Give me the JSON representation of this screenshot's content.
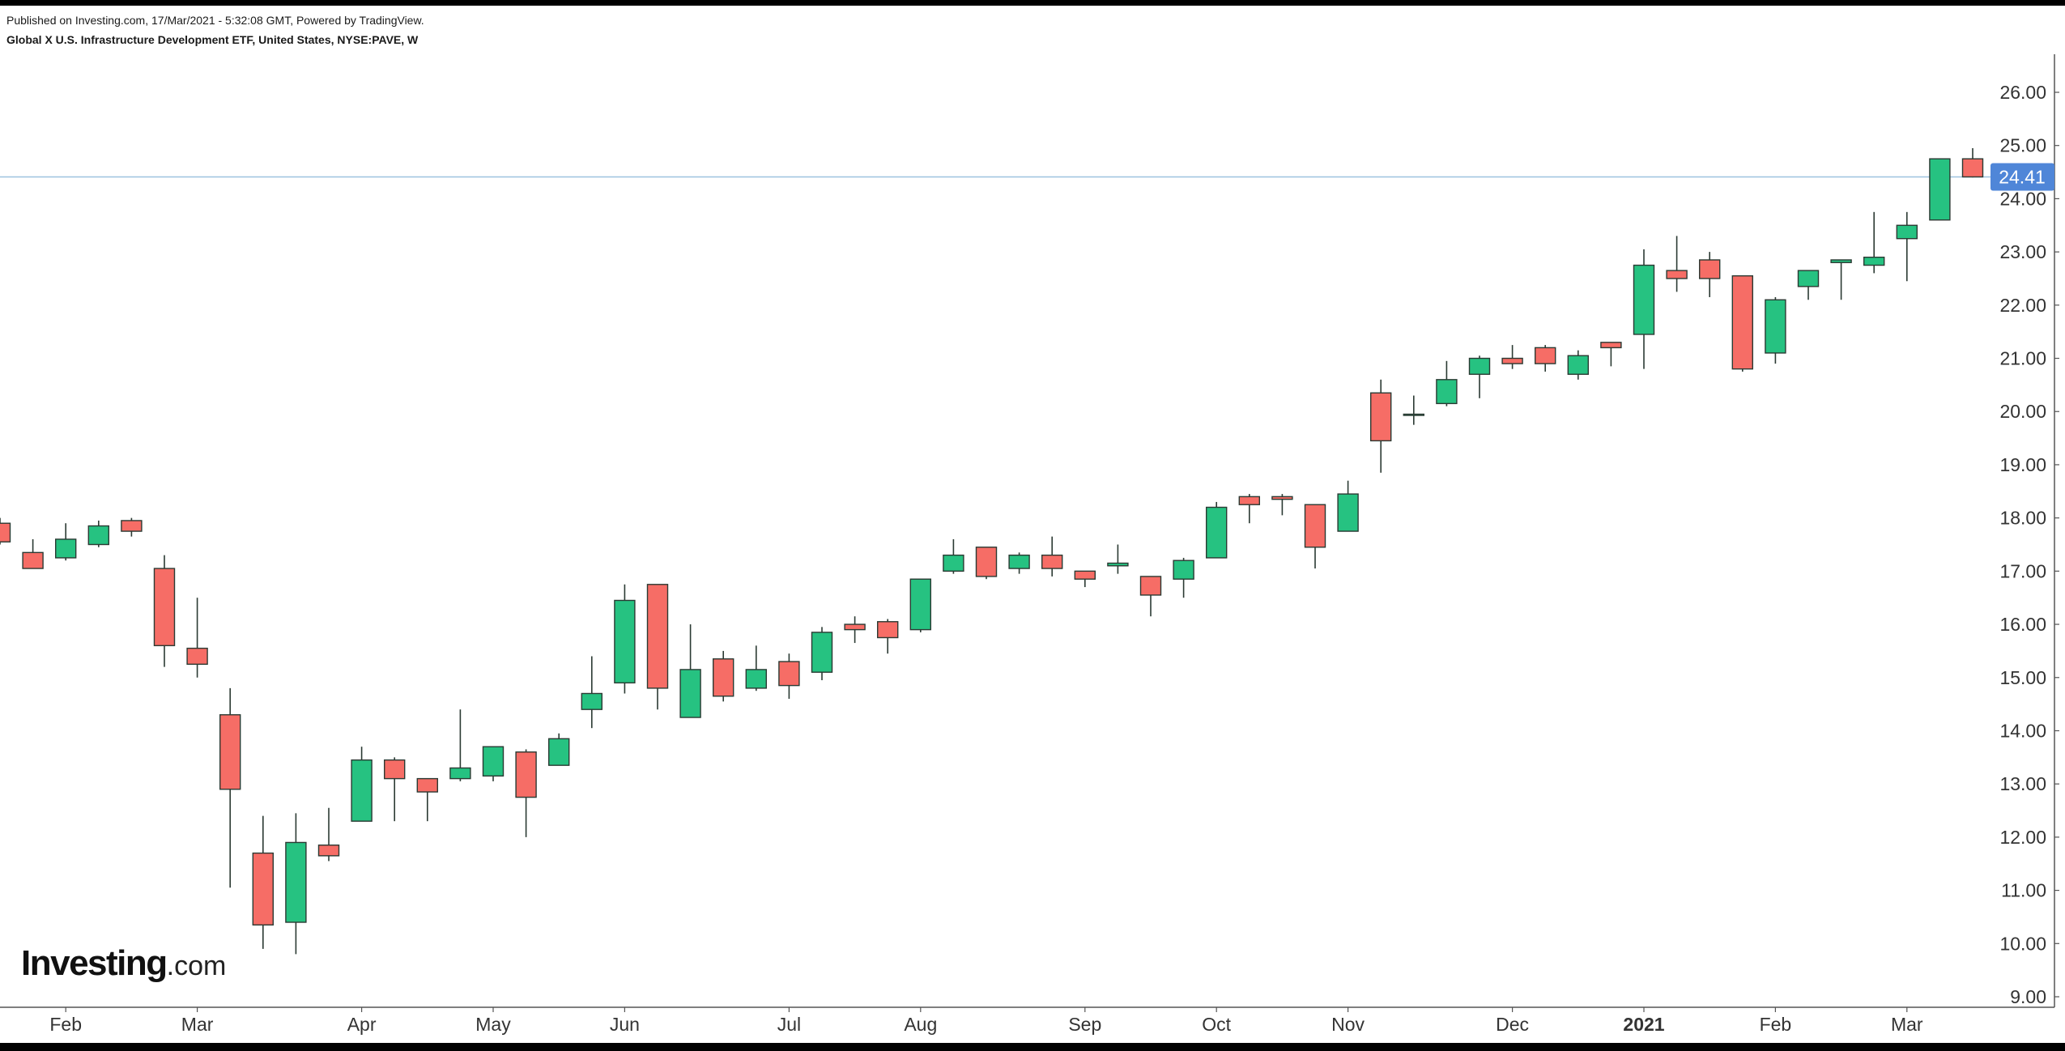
{
  "header": {
    "published": "Published on Investing.com, 17/Mar/2021 - 5:32:08 GMT, Powered by TradingView.",
    "symbol": "Global X U.S. Infrastructure Development ETF, United States, NYSE:PAVE, W"
  },
  "logo": {
    "main": "Investing",
    "tld": ".com"
  },
  "colors": {
    "up": "#26c281",
    "down": "#f66d66",
    "wick": "#2b3a33",
    "last_price_line": "#9ec3e0",
    "last_price_tag": "#4f86d8",
    "axis_text": "#333333"
  },
  "chart_data": {
    "type": "candlestick",
    "title": "",
    "xlabel": "",
    "ylabel": "",
    "ylim": [
      8.7,
      27.4
    ],
    "y_ticks": [
      "9.00",
      "10.00",
      "11.00",
      "12.00",
      "13.00",
      "14.00",
      "15.00",
      "16.00",
      "17.00",
      "18.00",
      "19.00",
      "20.00",
      "21.00",
      "22.00",
      "23.00",
      "24.00",
      "25.00",
      "26.00"
    ],
    "x_ticks": [
      {
        "label": "Feb",
        "index": 2
      },
      {
        "label": "Mar",
        "index": 6
      },
      {
        "label": "Apr",
        "index": 11
      },
      {
        "label": "May",
        "index": 15
      },
      {
        "label": "Jun",
        "index": 19
      },
      {
        "label": "Jul",
        "index": 24
      },
      {
        "label": "Aug",
        "index": 28
      },
      {
        "label": "Sep",
        "index": 33
      },
      {
        "label": "Oct",
        "index": 37
      },
      {
        "label": "Nov",
        "index": 41
      },
      {
        "label": "Dec",
        "index": 46
      },
      {
        "label": "2021",
        "index": 50,
        "bold": true
      },
      {
        "label": "Feb",
        "index": 54
      },
      {
        "label": "Mar",
        "index": 58
      }
    ],
    "last_price": 24.41,
    "last_price_label": "24.41",
    "grid": false,
    "candles": [
      {
        "o": 17.9,
        "h": 18.0,
        "l": 17.5,
        "c": 17.55
      },
      {
        "o": 17.35,
        "h": 17.6,
        "l": 17.05,
        "c": 17.05
      },
      {
        "o": 17.25,
        "h": 17.9,
        "l": 17.2,
        "c": 17.6
      },
      {
        "o": 17.5,
        "h": 17.95,
        "l": 17.45,
        "c": 17.85
      },
      {
        "o": 17.95,
        "h": 18.0,
        "l": 17.65,
        "c": 17.75
      },
      {
        "o": 17.05,
        "h": 17.3,
        "l": 15.2,
        "c": 15.6
      },
      {
        "o": 15.55,
        "h": 16.5,
        "l": 15.0,
        "c": 15.25
      },
      {
        "o": 14.3,
        "h": 14.8,
        "l": 11.05,
        "c": 12.9
      },
      {
        "o": 11.7,
        "h": 12.4,
        "l": 9.9,
        "c": 10.35
      },
      {
        "o": 10.4,
        "h": 12.45,
        "l": 9.8,
        "c": 11.9
      },
      {
        "o": 11.85,
        "h": 12.55,
        "l": 11.55,
        "c": 11.65
      },
      {
        "o": 12.3,
        "h": 13.7,
        "l": 12.3,
        "c": 13.45
      },
      {
        "o": 13.45,
        "h": 13.5,
        "l": 12.3,
        "c": 13.1
      },
      {
        "o": 13.1,
        "h": 13.1,
        "l": 12.3,
        "c": 12.85
      },
      {
        "o": 13.1,
        "h": 14.4,
        "l": 13.05,
        "c": 13.3
      },
      {
        "o": 13.15,
        "h": 13.7,
        "l": 13.05,
        "c": 13.7
      },
      {
        "o": 13.6,
        "h": 13.65,
        "l": 12.0,
        "c": 12.75
      },
      {
        "o": 13.35,
        "h": 13.95,
        "l": 13.35,
        "c": 13.85
      },
      {
        "o": 14.4,
        "h": 15.4,
        "l": 14.05,
        "c": 14.7
      },
      {
        "o": 14.9,
        "h": 16.75,
        "l": 14.7,
        "c": 16.45
      },
      {
        "o": 16.75,
        "h": 16.75,
        "l": 14.4,
        "c": 14.8
      },
      {
        "o": 14.25,
        "h": 16.0,
        "l": 14.25,
        "c": 15.15
      },
      {
        "o": 15.35,
        "h": 15.5,
        "l": 14.55,
        "c": 14.65
      },
      {
        "o": 14.8,
        "h": 15.6,
        "l": 14.75,
        "c": 15.15
      },
      {
        "o": 15.3,
        "h": 15.45,
        "l": 14.6,
        "c": 14.85
      },
      {
        "o": 15.1,
        "h": 15.95,
        "l": 14.95,
        "c": 15.85
      },
      {
        "o": 16.0,
        "h": 16.15,
        "l": 15.65,
        "c": 15.9
      },
      {
        "o": 16.05,
        "h": 16.1,
        "l": 15.45,
        "c": 15.75
      },
      {
        "o": 15.9,
        "h": 16.85,
        "l": 15.85,
        "c": 16.85
      },
      {
        "o": 17.0,
        "h": 17.6,
        "l": 16.95,
        "c": 17.3
      },
      {
        "o": 17.45,
        "h": 17.45,
        "l": 16.85,
        "c": 16.9
      },
      {
        "o": 17.05,
        "h": 17.35,
        "l": 16.95,
        "c": 17.3
      },
      {
        "o": 17.3,
        "h": 17.65,
        "l": 16.9,
        "c": 17.05
      },
      {
        "o": 17.0,
        "h": 17.0,
        "l": 16.7,
        "c": 16.85
      },
      {
        "o": 17.1,
        "h": 17.5,
        "l": 16.95,
        "c": 17.15
      },
      {
        "o": 16.9,
        "h": 16.9,
        "l": 16.15,
        "c": 16.55
      },
      {
        "o": 16.85,
        "h": 17.25,
        "l": 16.5,
        "c": 17.2
      },
      {
        "o": 17.25,
        "h": 18.3,
        "l": 17.25,
        "c": 18.2
      },
      {
        "o": 18.4,
        "h": 18.45,
        "l": 17.9,
        "c": 18.25
      },
      {
        "o": 18.4,
        "h": 18.45,
        "l": 18.05,
        "c": 18.35
      },
      {
        "o": 18.25,
        "h": 18.25,
        "l": 17.05,
        "c": 17.45
      },
      {
        "o": 17.75,
        "h": 18.7,
        "l": 17.75,
        "c": 18.45
      },
      {
        "o": 20.35,
        "h": 20.6,
        "l": 18.85,
        "c": 19.45
      },
      {
        "o": 19.95,
        "h": 20.3,
        "l": 19.75,
        "c": 19.95
      },
      {
        "o": 20.15,
        "h": 20.95,
        "l": 20.1,
        "c": 20.6
      },
      {
        "o": 20.7,
        "h": 21.05,
        "l": 20.25,
        "c": 21.0
      },
      {
        "o": 21.0,
        "h": 21.25,
        "l": 20.8,
        "c": 20.9
      },
      {
        "o": 21.2,
        "h": 21.25,
        "l": 20.75,
        "c": 20.9
      },
      {
        "o": 20.7,
        "h": 21.15,
        "l": 20.6,
        "c": 21.05
      },
      {
        "o": 21.3,
        "h": 21.3,
        "l": 20.85,
        "c": 21.2
      },
      {
        "o": 21.45,
        "h": 23.05,
        "l": 20.8,
        "c": 22.75
      },
      {
        "o": 22.65,
        "h": 23.3,
        "l": 22.25,
        "c": 22.5
      },
      {
        "o": 22.85,
        "h": 23.0,
        "l": 22.15,
        "c": 22.5
      },
      {
        "o": 22.55,
        "h": 22.55,
        "l": 20.75,
        "c": 20.8
      },
      {
        "o": 21.1,
        "h": 22.15,
        "l": 20.9,
        "c": 22.1
      },
      {
        "o": 22.35,
        "h": 22.65,
        "l": 22.1,
        "c": 22.65
      },
      {
        "o": 22.8,
        "h": 22.85,
        "l": 22.1,
        "c": 22.85
      },
      {
        "o": 22.75,
        "h": 23.75,
        "l": 22.6,
        "c": 22.9
      },
      {
        "o": 23.25,
        "h": 23.75,
        "l": 22.45,
        "c": 23.5
      },
      {
        "o": 23.6,
        "h": 24.75,
        "l": 23.6,
        "c": 24.75
      },
      {
        "o": 24.75,
        "h": 24.95,
        "l": 24.4,
        "c": 24.41
      }
    ]
  }
}
